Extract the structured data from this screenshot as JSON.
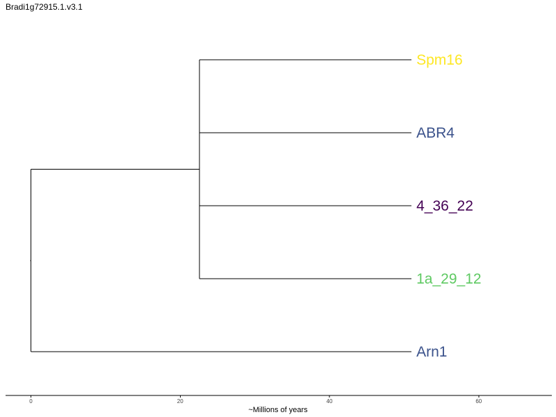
{
  "title": "Bradi1g72915.1.v3.1",
  "chart_data": {
    "type": "phylogenetic-tree",
    "xlabel": "~Millions of years",
    "xlim": [
      -3.4,
      69.8
    ],
    "xticks": [
      0,
      20,
      40,
      60
    ],
    "tips": [
      {
        "name": "Spm16",
        "color": "#FDE725",
        "x": 51
      },
      {
        "name": "ABR4",
        "color": "#3B528B",
        "x": 51
      },
      {
        "name": "4_36_22",
        "color": "#440154",
        "x": 51
      },
      {
        "name": "1a_29_12",
        "color": "#5EC962",
        "x": 51
      },
      {
        "name": "Arn1",
        "color": "#3B528B",
        "x": 51
      }
    ],
    "internal_nodes": [
      {
        "x": 0,
        "children": [
          "clade1",
          "Arn1"
        ]
      },
      {
        "id": "clade1",
        "x": 22.6,
        "children": [
          "Spm16",
          "ABR4",
          "4_36_22",
          "1a_29_12"
        ]
      }
    ]
  }
}
